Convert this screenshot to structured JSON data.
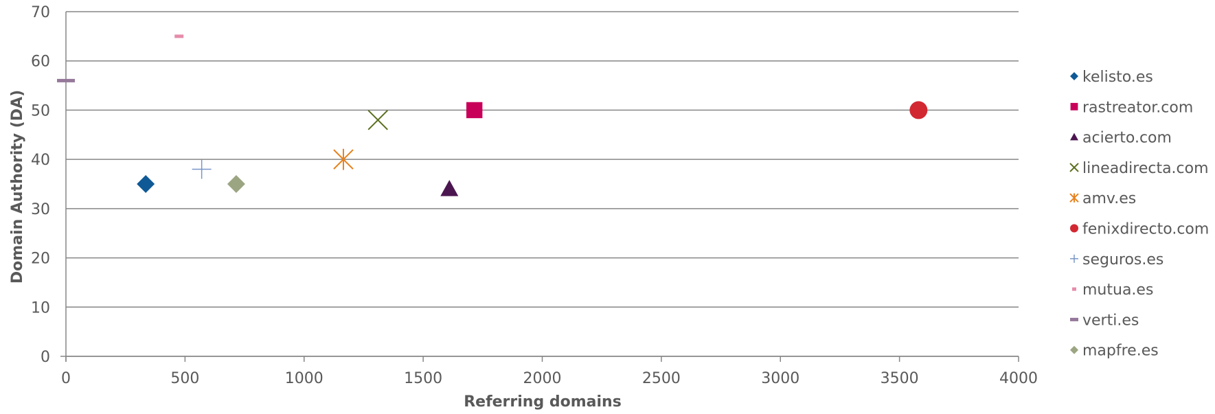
{
  "chart_data": {
    "type": "scatter",
    "title": "",
    "xlabel": "Referring domains",
    "ylabel": "Domain Authority (DA)",
    "xlim": [
      0,
      4000
    ],
    "ylim": [
      0,
      70
    ],
    "x_ticks": [
      0,
      500,
      1000,
      1500,
      2000,
      2500,
      3000,
      3500,
      4000
    ],
    "y_ticks": [
      0,
      10,
      20,
      30,
      40,
      50,
      60,
      70
    ],
    "grid": "horizontal",
    "legend_position": "right",
    "series": [
      {
        "name": "kelisto.es",
        "marker": "diamond",
        "color": "#0F5A96",
        "points": [
          {
            "x": 335,
            "y": 35
          }
        ]
      },
      {
        "name": "rastreator.com",
        "marker": "square",
        "color": "#C8005A",
        "points": [
          {
            "x": 1715,
            "y": 50
          }
        ]
      },
      {
        "name": "acierto.com",
        "marker": "triangle",
        "color": "#4B1650",
        "points": [
          {
            "x": 1610,
            "y": 34
          }
        ]
      },
      {
        "name": "lineadirecta.com",
        "marker": "x",
        "color": "#5A6E1E",
        "points": [
          {
            "x": 1310,
            "y": 48
          }
        ]
      },
      {
        "name": "amv.es",
        "marker": "asterisk",
        "color": "#E6821E",
        "points": [
          {
            "x": 1165,
            "y": 40
          }
        ]
      },
      {
        "name": "fenixdirecto.com",
        "marker": "circle",
        "color": "#D22832",
        "points": [
          {
            "x": 3580,
            "y": 50
          }
        ]
      },
      {
        "name": "seguros.es",
        "marker": "plus",
        "color": "#7896C8",
        "points": [
          {
            "x": 570,
            "y": 38
          }
        ]
      },
      {
        "name": "mutua.es",
        "marker": "dash-small",
        "color": "#E68CAA",
        "points": [
          {
            "x": 475,
            "y": 65
          }
        ]
      },
      {
        "name": "verti.es",
        "marker": "dash",
        "color": "#96789B",
        "points": [
          {
            "x": 0,
            "y": 56
          }
        ]
      },
      {
        "name": "mapfre.es",
        "marker": "diamond",
        "color": "#9BA582",
        "points": [
          {
            "x": 715,
            "y": 35
          }
        ]
      }
    ]
  }
}
